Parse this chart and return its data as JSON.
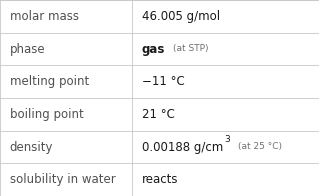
{
  "rows": [
    {
      "label": "molar mass",
      "value": "46.005 g/mol",
      "value_bold": false,
      "annotation": "",
      "superscript": ""
    },
    {
      "label": "phase",
      "value": "gas",
      "value_bold": true,
      "annotation": "(at STP)",
      "superscript": ""
    },
    {
      "label": "melting point",
      "value": "−11 °C",
      "value_bold": false,
      "annotation": "",
      "superscript": ""
    },
    {
      "label": "boiling point",
      "value": "21 °C",
      "value_bold": false,
      "annotation": "",
      "superscript": ""
    },
    {
      "label": "density",
      "value": "0.00188 g/cm",
      "value_bold": false,
      "annotation": "(at 25 °C)",
      "superscript": "3"
    },
    {
      "label": "solubility in water",
      "value": "reacts",
      "value_bold": false,
      "annotation": "",
      "superscript": ""
    }
  ],
  "bg_color": "#ffffff",
  "line_color": "#c8c8c8",
  "label_color": "#505050",
  "value_color": "#1a1a1a",
  "annotation_color": "#707070",
  "label_fontsize": 8.5,
  "value_fontsize": 8.5,
  "annotation_fontsize": 6.5,
  "sup_fontsize": 6.5,
  "col_split": 0.415
}
